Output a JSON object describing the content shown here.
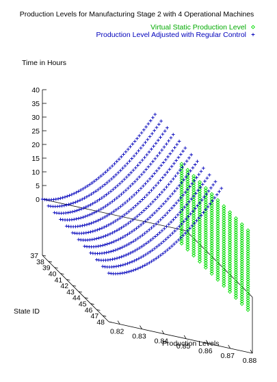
{
  "chart_data": {
    "type": "scatter",
    "title": "Production Levels for Manufacturing Stage 2 with 4 Operational Machines",
    "zlabel": "Time in Hours",
    "xlabel": "Production Levels",
    "ylabel": "State ID",
    "xlim": [
      0.815,
      0.88
    ],
    "ylim": [
      37,
      48
    ],
    "zlim": [
      0,
      40
    ],
    "x_ticks": [
      "0.82",
      "0.83",
      "0.84",
      "0.85",
      "0.86",
      "0.87",
      "0.88"
    ],
    "y_ticks": [
      "37",
      "38",
      "39",
      "40",
      "41",
      "42",
      "43",
      "44",
      "45",
      "46",
      "47",
      "48"
    ],
    "z_ticks": [
      "0",
      "5",
      "10",
      "15",
      "20",
      "25",
      "30",
      "35",
      "40"
    ],
    "legend_position": "top-right",
    "series": [
      {
        "name": "Virtual Static Production Level",
        "color": "#00dd00",
        "marker": "diamond",
        "x_value": 0.878,
        "z_range": [
          -5,
          24
        ],
        "state_ids": [
          37,
          38,
          39,
          40,
          41,
          42,
          43,
          44,
          45,
          46,
          47,
          48
        ]
      },
      {
        "name": "Production Level Adjusted with Regular Control",
        "color": "#0000bb",
        "marker": "plus",
        "x_range": [
          0.815,
          0.866
        ],
        "z_range": [
          0,
          40
        ],
        "state_ids": [
          37,
          38,
          39,
          40,
          41,
          42,
          43,
          44,
          45,
          46,
          47,
          48
        ]
      }
    ]
  }
}
